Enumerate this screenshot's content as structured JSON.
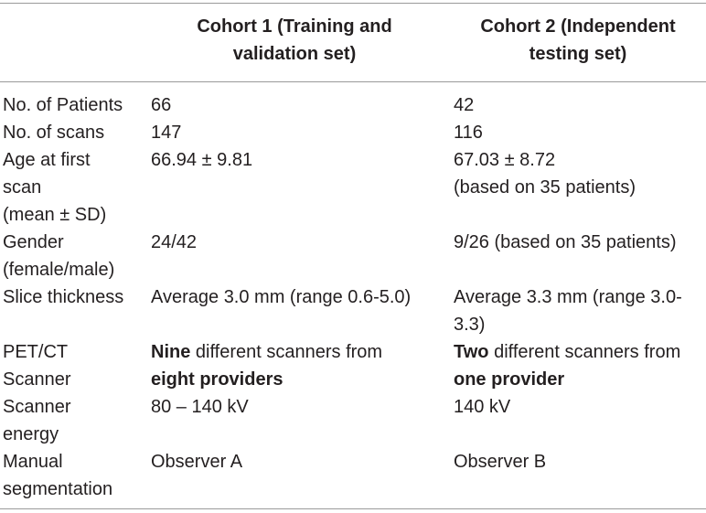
{
  "header": {
    "col_label": "",
    "col1": "Cohort 1 (Training and\nvalidation set)",
    "col2": "Cohort 2 (Independent\ntesting set)"
  },
  "rows": [
    {
      "label": [
        "No. of Patients"
      ],
      "v1": [
        [
          "66"
        ]
      ],
      "v2": [
        [
          "42"
        ]
      ]
    },
    {
      "label": [
        "No. of scans"
      ],
      "v1": [
        [
          "147"
        ]
      ],
      "v2": [
        [
          "116"
        ]
      ]
    },
    {
      "label": [
        "Age at first",
        "scan",
        "(mean ± SD)"
      ],
      "v1": [
        [
          "66.94 ± 9.81"
        ]
      ],
      "v2": [
        [
          "67.03 ± 8.72"
        ],
        [
          "(based on 35 patients)"
        ]
      ]
    },
    {
      "label": [
        "Gender",
        "(female/male)"
      ],
      "v1": [
        [
          "24/42"
        ]
      ],
      "v2": [
        [
          "9/26 (based on 35 patients)"
        ]
      ]
    },
    {
      "label": [
        "Slice thickness"
      ],
      "v1": [
        [
          "Average 3.0 mm (range 0.6-5.0)"
        ]
      ],
      "v2": [
        [
          "Average 3.3 mm (range 3.0-"
        ],
        [
          "3.3)"
        ]
      ]
    },
    {
      "label": [
        "PET/CT",
        "Scanner"
      ],
      "v1_rich": [
        {
          "bold": "Nine",
          "rest": " different scanners from"
        },
        {
          "bold": "eight providers",
          "rest": ""
        }
      ],
      "v2_rich": [
        {
          "bold": "Two",
          "rest": " different scanners from"
        },
        {
          "bold": "one provider",
          "rest": ""
        }
      ]
    },
    {
      "label": [
        "Scanner",
        "energy"
      ],
      "v1": [
        [
          "80 – 140 kV"
        ]
      ],
      "v2": [
        [
          "140 kV"
        ]
      ]
    },
    {
      "label": [
        "Manual",
        "segmentation"
      ],
      "v1": [
        [
          "Observer A"
        ]
      ],
      "v2": [
        [
          "Observer B"
        ]
      ]
    }
  ]
}
